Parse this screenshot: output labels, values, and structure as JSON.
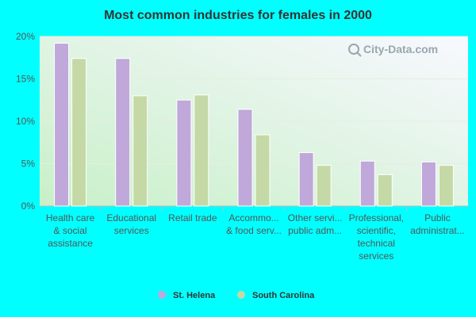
{
  "chart_data": {
    "type": "bar",
    "title": "Most common industries for females in 2000",
    "categories": [
      [
        "Health care",
        "& social",
        "assistance"
      ],
      [
        "Educational",
        "services"
      ],
      [
        "Retail trade"
      ],
      [
        "Accommo...",
        "& food serv..."
      ],
      [
        "Other servi...",
        "public adm..."
      ],
      [
        "Professional,",
        "scientific,",
        "technical",
        "services"
      ],
      [
        "Public",
        "administrat..."
      ]
    ],
    "series": [
      {
        "name": "St. Helena",
        "color": "#c0a8da",
        "values": [
          19.2,
          17.4,
          12.5,
          11.4,
          6.3,
          5.3,
          5.2
        ]
      },
      {
        "name": "South Carolina",
        "color": "#c4d9a6",
        "values": [
          17.4,
          13.0,
          13.1,
          8.4,
          4.8,
          3.7,
          4.8
        ]
      }
    ],
    "yticks": [
      "0%",
      "5%",
      "10%",
      "15%",
      "20%"
    ],
    "ylim": [
      0,
      20
    ],
    "grid": true,
    "legend_position": "bottom",
    "watermark": "City-Data.com"
  }
}
